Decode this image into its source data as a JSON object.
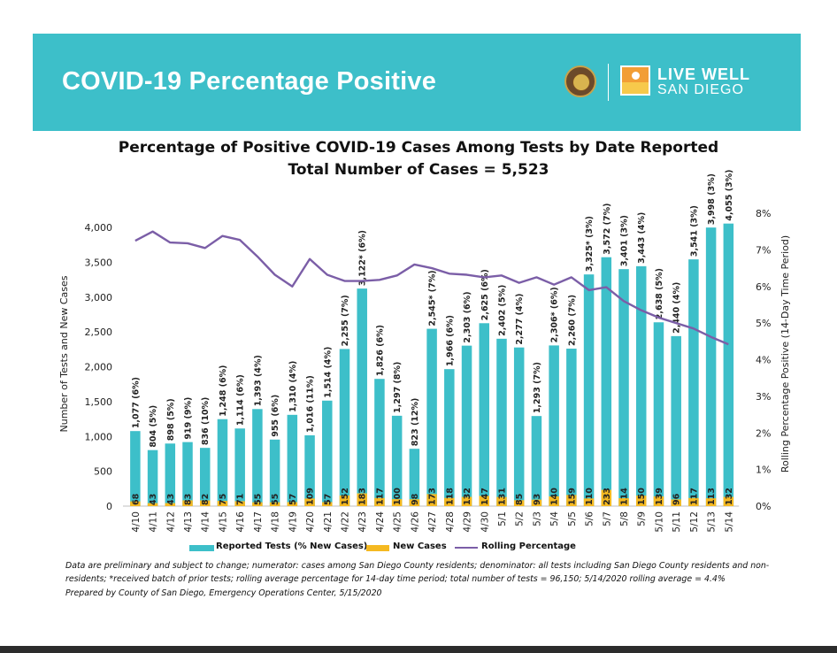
{
  "banner": {
    "title": "COVID-19 Percentage Positive",
    "logo_line1": "LIVE WELL",
    "logo_line2": "SAN DIEGO",
    "background_color": "#3dbfc9"
  },
  "chart_data": {
    "type": "bar",
    "title": "Percentage of Positive COVID-19 Cases Among Tests by Date Reported",
    "subtitle": "Total Number of Cases = 5,523",
    "xlabel": "",
    "ylabel": "Number of Tests and New Cases",
    "y2label": "Rolling Percentage Positive (14-Day Time Period)",
    "ylim": [
      0,
      4000
    ],
    "yticks": [
      "0",
      "500",
      "1,000",
      "1,500",
      "2,000",
      "2,500",
      "3,000",
      "3,500",
      "4,000"
    ],
    "y2lim": [
      0,
      8
    ],
    "y2ticks": [
      "0%",
      "1%",
      "2%",
      "3%",
      "4%",
      "5%",
      "6%",
      "7%",
      "8%"
    ],
    "categories": [
      "4/10",
      "4/11",
      "4/12",
      "4/13",
      "4/14",
      "4/15",
      "4/16",
      "4/17",
      "4/18",
      "4/19",
      "4/20",
      "4/21",
      "4/22",
      "4/23",
      "4/24",
      "4/25",
      "4/26",
      "4/27",
      "4/28",
      "4/29",
      "4/30",
      "5/1",
      "5/2",
      "5/3",
      "5/4",
      "5/5",
      "5/6",
      "5/7",
      "5/8",
      "5/9",
      "5/10",
      "5/11",
      "5/12",
      "5/13",
      "5/14"
    ],
    "series": [
      {
        "name": "Reported Tests (% New Cases)",
        "type": "bar",
        "color": "#3dbfc9",
        "values": [
          1077,
          804,
          898,
          919,
          836,
          1248,
          1114,
          1393,
          955,
          1310,
          1016,
          1514,
          2255,
          3122,
          1826,
          1297,
          823,
          2545,
          1966,
          2303,
          2625,
          2402,
          2277,
          1293,
          2306,
          2260,
          3325,
          3572,
          3401,
          3443,
          2638,
          2440,
          3541,
          3998,
          4055
        ],
        "labels": [
          "1,077 (6%)",
          "804 (5%)",
          "898 (5%)",
          "919 (9%)",
          "836 (10%)",
          "1,248 (6%)",
          "1,114 (6%)",
          "1,393 (4%)",
          "955 (6%)",
          "1,310 (4%)",
          "1,016 (11%)",
          "1,514 (4%)",
          "2,255 (7%)",
          "3,122* (6%)",
          "1,826 (6%)",
          "1,297 (8%)",
          "823 (12%)",
          "2,545* (7%)",
          "1,966 (6%)",
          "2,303 (6%)",
          "2,625 (6%)",
          "2,402 (5%)",
          "2,277 (4%)",
          "1,293 (7%)",
          "2,306* (6%)",
          "2,260 (7%)",
          "3,325* (3%)",
          "3,572 (7%)",
          "3,401 (3%)",
          "3,443 (4%)",
          "2,638 (5%)",
          "2,440 (4%)",
          "3,541 (3%)",
          "3,998 (3%)",
          "4,055 (3%)"
        ]
      },
      {
        "name": "New Cases",
        "type": "bar",
        "color": "#f5b921",
        "values": [
          68,
          43,
          43,
          83,
          82,
          75,
          71,
          55,
          55,
          57,
          109,
          57,
          152,
          183,
          117,
          100,
          98,
          173,
          118,
          132,
          147,
          131,
          85,
          93,
          140,
          159,
          110,
          233,
          114,
          150,
          139,
          96,
          117,
          113,
          132
        ],
        "labels": [
          "68",
          "43",
          "43",
          "83",
          "82",
          "75",
          "71",
          "55",
          "55",
          "57",
          "109",
          "57",
          "152",
          "183",
          "117",
          "100",
          "98",
          "173",
          "118",
          "132",
          "147",
          "131",
          "85",
          "93",
          "140",
          "159",
          "110",
          "233",
          "114",
          "150",
          "139",
          "96",
          "117",
          "113",
          "132"
        ]
      },
      {
        "name": "Rolling Percentage",
        "type": "line",
        "axis": "right",
        "color": "#7b5ea7",
        "values": [
          7.25,
          7.5,
          7.2,
          7.18,
          7.05,
          7.38,
          7.27,
          6.82,
          6.32,
          6.0,
          6.75,
          6.32,
          6.15,
          6.15,
          6.18,
          6.3,
          6.6,
          6.5,
          6.35,
          6.32,
          6.25,
          6.3,
          6.1,
          6.25,
          6.05,
          6.25,
          5.9,
          5.98,
          5.6,
          5.35,
          5.15,
          5.0,
          4.85,
          4.62,
          4.42
        ]
      }
    ],
    "grid": false,
    "legend": "bottom"
  },
  "footnote": "Data are preliminary and subject to change; numerator: cases among San Diego County residents; denominator: all tests including San Diego County residents and non-residents; *received batch of prior tests; rolling average percentage for 14-day time period; total number of tests = 96,150; 5/14/2020 rolling average = 4.4%",
  "prepared_by": "Prepared by County of San Diego, Emergency Operations Center, 5/15/2020"
}
